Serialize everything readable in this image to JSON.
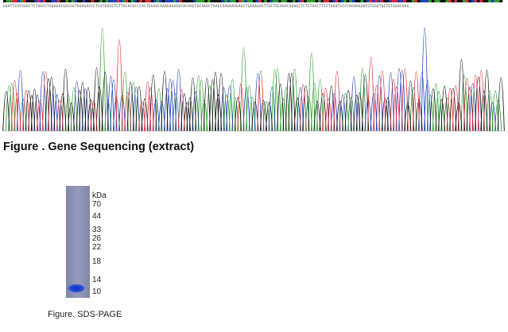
{
  "sequence": {
    "bases": "GAATTCATGGGCTCTGGCCTGGAGACGGCGGTGGAGACCCTCATGACGTGTTGCACGCCCACTGGGGCAAAGAGGGGCACAAGTACAAGCTGAGCAAGAAGGAGCTGAAAGAGTTGCTGCAGACGGAGCTCTCTGGCTTCCTGGATGCCCAGAAGGATGTGGATGCTGTGGACAAG",
    "colors": {
      "A": "#2ca02c",
      "C": "#1f3fbf",
      "G": "#111111",
      "T": "#d62728",
      "T_trace": "#e0283a"
    }
  },
  "figure1": {
    "caption": "Figure . Gene Sequencing (extract)"
  },
  "gel": {
    "unit_label": "kDa",
    "markers": [
      "70",
      "44",
      "33",
      "26",
      "22",
      "18",
      "14",
      "10"
    ],
    "band_marker": "10",
    "band_color": "#1a3fc8",
    "lane_color": "#8a90b0"
  },
  "figure2": {
    "caption": "Figure. SDS-PAGE"
  }
}
